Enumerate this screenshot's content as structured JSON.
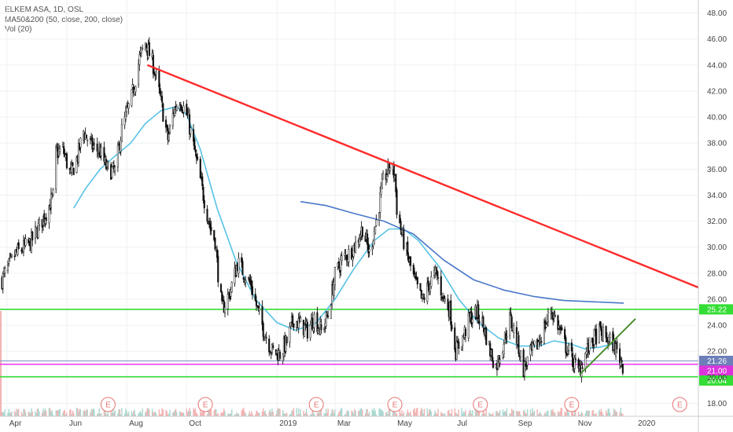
{
  "legend": {
    "line1": "ELKEM ASA, 1D, OSL",
    "line2": "MA50&200 (50, close, 200, close)",
    "line3": "Vol (20)"
  },
  "colors": {
    "candle": "#111111",
    "ma50": "#56c2e6",
    "ma200": "#4a78c9",
    "trend_red": "#ff2a2a",
    "trend_green": "#4a8f2f",
    "level_green": "#33dd33",
    "level_magenta": "#ee33ee",
    "level_blue": "#7d8fc6",
    "earnings": "#e57373"
  },
  "chart_data": {
    "type": "candlestick",
    "title": "",
    "x_axis": {
      "type": "date",
      "tick_labels": [
        {
          "label": "Apr",
          "date": "2018-04-01"
        },
        {
          "label": "Jun",
          "date": "2018-06-01"
        },
        {
          "label": "Aug",
          "date": "2018-08-01"
        },
        {
          "label": "Oct",
          "date": "2018-10-01"
        },
        {
          "label": "2019",
          "date": "2019-01-01"
        },
        {
          "label": "Mar",
          "date": "2019-03-01"
        },
        {
          "label": "May",
          "date": "2019-05-01"
        },
        {
          "label": "Jul",
          "date": "2019-07-01"
        },
        {
          "label": "Sep",
          "date": "2019-09-01"
        },
        {
          "label": "Nov",
          "date": "2019-11-01"
        },
        {
          "label": "2020",
          "date": "2020-01-01"
        }
      ],
      "range": [
        "2018-03-25",
        "2020-03-05"
      ]
    },
    "y_axis": {
      "position": "right",
      "range": [
        17.0,
        49.0
      ],
      "ticks": [
        "18.00",
        "20.00",
        "22.00",
        "24.00",
        "26.00",
        "28.00",
        "30.00",
        "32.00",
        "34.00",
        "36.00",
        "38.00",
        "40.00",
        "42.00",
        "44.00",
        "46.00",
        "48.00"
      ]
    },
    "grid": true,
    "price_path": [
      [
        "2018-03-27",
        27.5
      ],
      [
        "2018-04-10",
        29.5
      ],
      [
        "2018-04-25",
        30.3
      ],
      [
        "2018-05-10",
        32.5
      ],
      [
        "2018-05-18",
        33.9
      ],
      [
        "2018-05-21",
        37.2
      ],
      [
        "2018-05-28",
        37.5
      ],
      [
        "2018-06-05",
        35.5
      ],
      [
        "2018-06-12",
        37.0
      ],
      [
        "2018-06-18",
        38.9
      ],
      [
        "2018-06-26",
        37.8
      ],
      [
        "2018-07-05",
        37.3
      ],
      [
        "2018-07-12",
        36.0
      ],
      [
        "2018-07-20",
        35.8
      ],
      [
        "2018-07-27",
        39.0
      ],
      [
        "2018-08-06",
        41.5
      ],
      [
        "2018-08-14",
        44.5
      ],
      [
        "2018-08-20",
        45.7
      ],
      [
        "2018-08-28",
        44.0
      ],
      [
        "2018-09-04",
        41.5
      ],
      [
        "2018-09-12",
        38.3
      ],
      [
        "2018-09-18",
        40.5
      ],
      [
        "2018-09-24",
        41.4
      ],
      [
        "2018-10-02",
        40.0
      ],
      [
        "2018-10-10",
        37.0
      ],
      [
        "2018-10-18",
        34.0
      ],
      [
        "2018-10-25",
        31.5
      ],
      [
        "2018-10-30",
        30.5
      ],
      [
        "2018-11-02",
        28.0
      ],
      [
        "2018-11-06",
        25.2
      ],
      [
        "2018-11-14",
        26.5
      ],
      [
        "2018-11-22",
        28.8
      ],
      [
        "2018-11-30",
        27.8
      ],
      [
        "2018-12-06",
        27.0
      ],
      [
        "2018-12-12",
        25.2
      ],
      [
        "2018-12-19",
        23.5
      ],
      [
        "2018-12-27",
        22.0
      ],
      [
        "2019-01-04",
        21.8
      ],
      [
        "2019-01-11",
        22.7
      ],
      [
        "2019-01-18",
        24.5
      ],
      [
        "2019-01-25",
        24.0
      ],
      [
        "2019-02-01",
        23.6
      ],
      [
        "2019-02-08",
        24.6
      ],
      [
        "2019-02-15",
        23.5
      ],
      [
        "2019-02-22",
        24.8
      ],
      [
        "2019-03-01",
        27.8
      ],
      [
        "2019-03-08",
        29.0
      ],
      [
        "2019-03-15",
        29.5
      ],
      [
        "2019-03-22",
        30.2
      ],
      [
        "2019-03-29",
        31.5
      ],
      [
        "2019-04-05",
        29.5
      ],
      [
        "2019-04-12",
        32.0
      ],
      [
        "2019-04-19",
        35.0
      ],
      [
        "2019-04-26",
        36.3
      ],
      [
        "2019-05-01",
        35.5
      ],
      [
        "2019-05-03",
        33.0
      ],
      [
        "2019-05-08",
        31.0
      ],
      [
        "2019-05-15",
        29.0
      ],
      [
        "2019-05-22",
        27.2
      ],
      [
        "2019-05-29",
        25.8
      ],
      [
        "2019-06-05",
        27.2
      ],
      [
        "2019-06-12",
        28.0
      ],
      [
        "2019-06-19",
        26.2
      ],
      [
        "2019-06-26",
        25.2
      ],
      [
        "2019-07-02",
        22.0
      ],
      [
        "2019-07-09",
        23.0
      ],
      [
        "2019-07-16",
        24.5
      ],
      [
        "2019-07-23",
        25.0
      ],
      [
        "2019-07-30",
        24.0
      ],
      [
        "2019-08-06",
        22.0
      ],
      [
        "2019-08-12",
        20.8
      ],
      [
        "2019-08-19",
        22.5
      ],
      [
        "2019-08-26",
        24.5
      ],
      [
        "2019-09-02",
        23.0
      ],
      [
        "2019-09-09",
        20.6
      ],
      [
        "2019-09-16",
        21.8
      ],
      [
        "2019-09-23",
        22.5
      ],
      [
        "2019-09-30",
        23.8
      ],
      [
        "2019-10-07",
        25.2
      ],
      [
        "2019-10-14",
        24.0
      ],
      [
        "2019-10-21",
        22.5
      ],
      [
        "2019-10-28",
        21.5
      ],
      [
        "2019-11-04",
        20.4
      ],
      [
        "2019-11-11",
        21.8
      ],
      [
        "2019-11-18",
        22.8
      ],
      [
        "2019-11-25",
        23.5
      ],
      [
        "2019-12-02",
        23.0
      ],
      [
        "2019-12-09",
        22.6
      ],
      [
        "2019-12-16",
        21.5
      ],
      [
        "2019-12-19",
        21.0
      ]
    ],
    "series": [
      {
        "type": "line",
        "points": [
          [
            "2018-06-08",
            33.0
          ],
          [
            "2018-06-20",
            34.5
          ],
          [
            "2018-07-05",
            36.0
          ],
          [
            "2018-07-20",
            37.0
          ],
          [
            "2018-08-05",
            38.0
          ],
          [
            "2018-08-20",
            39.5
          ],
          [
            "2018-09-05",
            40.5
          ],
          [
            "2018-09-20",
            40.8
          ],
          [
            "2018-10-01",
            40.2
          ],
          [
            "2018-10-15",
            37.5
          ],
          [
            "2018-11-01",
            33.0
          ],
          [
            "2018-11-20",
            29.0
          ],
          [
            "2018-12-10",
            26.0
          ],
          [
            "2019-01-01",
            24.2
          ],
          [
            "2019-01-20",
            23.6
          ],
          [
            "2019-02-10",
            24.2
          ],
          [
            "2019-03-01",
            26.0
          ],
          [
            "2019-03-20",
            28.3
          ],
          [
            "2019-04-10",
            30.5
          ],
          [
            "2019-04-25",
            31.4
          ],
          [
            "2019-05-10",
            31.4
          ],
          [
            "2019-05-25",
            30.5
          ],
          [
            "2019-06-15",
            28.5
          ],
          [
            "2019-07-05",
            26.0
          ],
          [
            "2019-07-25",
            24.2
          ],
          [
            "2019-08-15",
            23.0
          ],
          [
            "2019-09-05",
            22.4
          ],
          [
            "2019-09-25",
            22.4
          ],
          [
            "2019-10-10",
            22.8
          ],
          [
            "2019-10-25",
            22.6
          ],
          [
            "2019-11-10",
            22.2
          ],
          [
            "2019-11-25",
            22.3
          ],
          [
            "2019-12-10",
            22.6
          ]
        ]
      },
      {
        "type": "line",
        "points": [
          [
            "2019-01-25",
            33.5
          ],
          [
            "2019-02-20",
            33.2
          ],
          [
            "2019-03-20",
            32.6
          ],
          [
            "2019-04-20",
            32.0
          ],
          [
            "2019-05-20",
            31.0
          ],
          [
            "2019-06-20",
            29.0
          ],
          [
            "2019-07-20",
            27.5
          ],
          [
            "2019-08-20",
            26.7
          ],
          [
            "2019-09-20",
            26.2
          ],
          [
            "2019-10-20",
            25.9
          ],
          [
            "2019-11-20",
            25.8
          ],
          [
            "2019-12-20",
            25.7
          ]
        ]
      }
    ],
    "trendlines": [
      {
        "color": "red",
        "from": [
          "2018-08-22",
          44.0
        ],
        "to": [
          "2020-03-05",
          26.9
        ]
      },
      {
        "color": "green",
        "from": [
          "2019-11-05",
          20.2
        ],
        "to": [
          "2020-01-01",
          24.5
        ]
      }
    ],
    "horizontal_levels": [
      {
        "value": 25.22,
        "label": "25.22",
        "color": "green"
      },
      {
        "value": 21.26,
        "label": "21.26",
        "color": "blue"
      },
      {
        "value": 21.0,
        "label": "21.00",
        "color": "magenta"
      },
      {
        "value": 20.04,
        "label": "20.04",
        "color": "green"
      }
    ],
    "earnings_markers": {
      "label": "E",
      "dates": [
        "2018-07-13",
        "2018-10-20",
        "2019-02-10",
        "2019-05-01",
        "2019-07-27",
        "2019-10-28",
        "2020-02-15"
      ]
    },
    "volume": {
      "present": true,
      "scale": "relative"
    }
  }
}
